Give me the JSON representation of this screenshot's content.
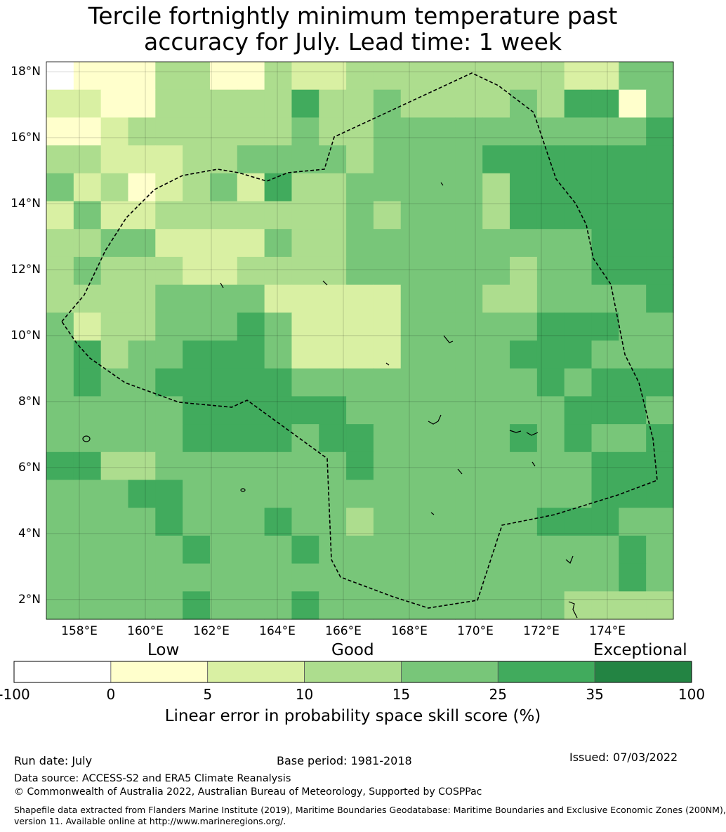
{
  "title_line1": "Tercile fortnightly minimum temperature past",
  "title_line2": "accuracy for July. Lead time: 1 week",
  "map": {
    "lon_range": [
      157,
      176
    ],
    "lat_range": [
      1.4,
      18.3
    ],
    "lat_ticks": [
      "18°N",
      "16°N",
      "14°N",
      "12°N",
      "10°N",
      "8°N",
      "6°N",
      "4°N",
      "2°N"
    ],
    "lon_ticks": [
      "158°E",
      "160°E",
      "162°E",
      "164°E",
      "166°E",
      "168°E",
      "170°E",
      "172°E",
      "174°E"
    ],
    "grid_cols": 23,
    "grid_rows": 20,
    "skill_class_grid": [
      "01113311322333333332244",
      "22113333353343333435514",
      "11233333343344444444445",
      "33222334444344445555555",
      "42312342533444443555555",
      "24223333333434443555555",
      "33442222433444444444555",
      "34333223333444444344555",
      "33334444222224443344445",
      "42334445422224444455544",
      "45344555422224444555444",
      "45445555544444444454555",
      "44444555555444444445554",
      "44444555545544444545445",
      "55334444444544444444555",
      "44455444444444444444555",
      "44445444544344444455544",
      "44444544454444444444454",
      "44444444444444444444454",
      "44444544454444444443333"
    ],
    "color_note": "palette indices into colorbar.colors"
  },
  "colorbar": {
    "category_labels": [
      "Low",
      "Good",
      "Exceptional"
    ],
    "ticks": [
      "-100",
      "0",
      "5",
      "10",
      "15",
      "25",
      "35",
      "100"
    ],
    "colors": [
      "#ffffff",
      "#ffffcc",
      "#d9f0a3",
      "#addd8e",
      "#78c679",
      "#41ab5d",
      "#238443"
    ],
    "label": "Linear error in probability space skill score (%)"
  },
  "footer": {
    "run_date": "Run date: July",
    "base_period": "Base period: 1981-2018",
    "issued": "Issued: 07/03/2022",
    "data_source": "Data source: ACCESS-S2 and ERA5 Climate Reanalysis",
    "copyright": "© Commonwealth of Australia 2022, Australian Bureau of Meteorology, Supported by COSPPac",
    "shapefile_line1": "Shapefile data extracted from Flanders Marine Institute (2019), Maritime Boundaries Geodatabase: Maritime Boundaries and Exclusive Economic Zones (200NM),",
    "shapefile_line2": "version 11. Available online at http://www.marineregions.org/."
  }
}
